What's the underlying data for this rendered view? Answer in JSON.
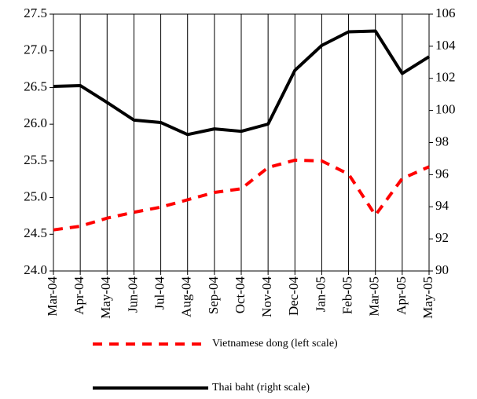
{
  "chart_data": {
    "type": "line",
    "categories": [
      "Mar-04",
      "Apr-04",
      "May-04",
      "Jun-04",
      "Jul-04",
      "Aug-04",
      "Sep-04",
      "Oct-04",
      "Nov-04",
      "Dec-04",
      "Jan-05",
      "Feb-05",
      "Mar-05",
      "Apr-05",
      "May-05"
    ],
    "series": [
      {
        "name": "Vietnamese dong (left scale)",
        "color": "#ff0000",
        "axis": "y",
        "dashed": true,
        "values": [
          24.56,
          24.61,
          24.72,
          24.8,
          24.87,
          24.97,
          25.07,
          25.12,
          25.41,
          25.51,
          25.5,
          25.32,
          24.76,
          25.26,
          25.42
        ]
      },
      {
        "name": "Thai baht (right scale)",
        "color": "#000000",
        "axis": "y2",
        "dashed": false,
        "values": [
          101.5,
          101.55,
          100.5,
          99.4,
          99.25,
          98.5,
          98.85,
          98.7,
          99.15,
          102.5,
          104.05,
          104.9,
          104.95,
          102.3,
          103.35
        ]
      }
    ],
    "ylim": [
      24,
      27.5
    ],
    "yticks": [
      {
        "value": 24,
        "label": "24.0"
      },
      24.5,
      {
        "value": 25,
        "label": "25.0"
      },
      25.5,
      {
        "value": 26,
        "label": "26.0"
      },
      26.5,
      {
        "value": 27,
        "label": "27.0"
      },
      27.5
    ],
    "y2lim": [
      90,
      106
    ],
    "y2ticks": [
      90,
      92,
      94,
      96,
      98,
      100,
      102,
      104,
      106
    ],
    "grid": "x"
  }
}
